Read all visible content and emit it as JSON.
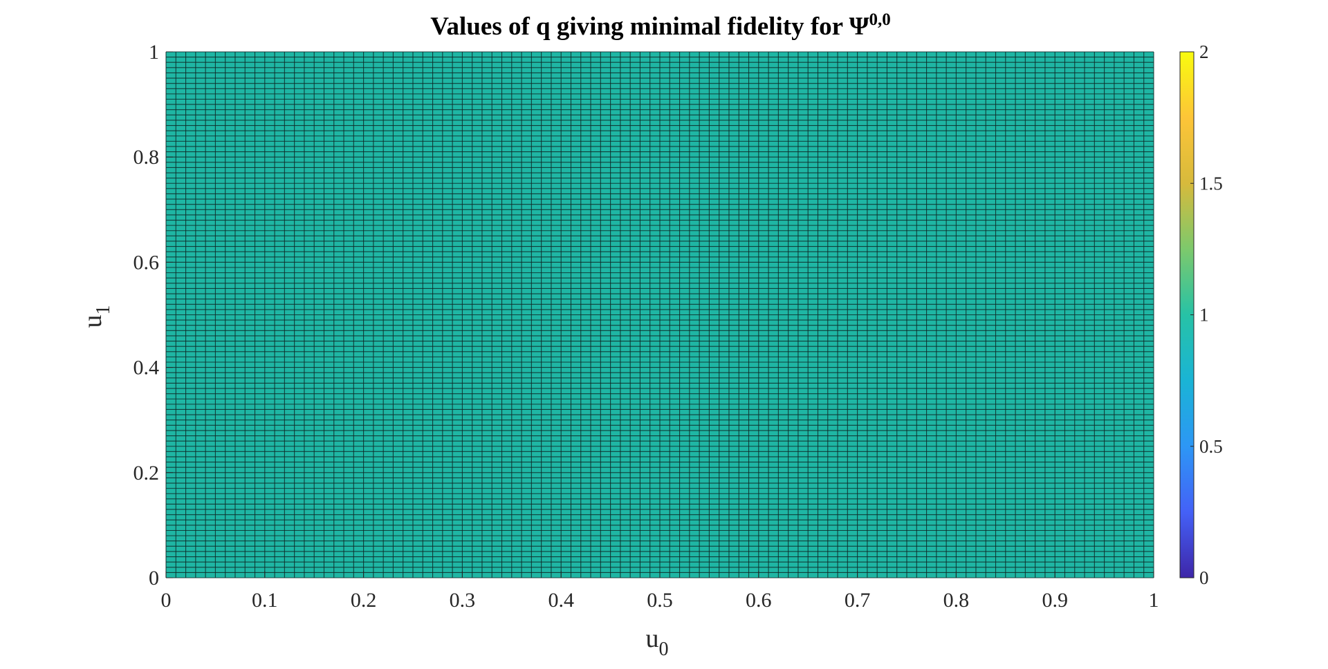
{
  "chart_data": {
    "type": "heatmap",
    "title": "Values of q giving minimal fidelity for Ψ",
    "title_superscript": "0,0",
    "xlabel": "u",
    "xlabel_subscript": "0",
    "ylabel": "u",
    "ylabel_subscript": "1",
    "xlim": [
      0,
      1
    ],
    "ylim": [
      0,
      1
    ],
    "x_ticks": [
      "0",
      "0.1",
      "0.2",
      "0.3",
      "0.4",
      "0.5",
      "0.6",
      "0.7",
      "0.8",
      "0.9",
      "1"
    ],
    "x_tick_values": [
      0,
      0.1,
      0.2,
      0.3,
      0.4,
      0.5,
      0.6,
      0.7,
      0.8,
      0.9,
      1
    ],
    "y_ticks": [
      "0",
      "0.2",
      "0.4",
      "0.6",
      "0.8",
      "1"
    ],
    "y_tick_values": [
      0,
      0.2,
      0.4,
      0.6,
      0.8,
      1
    ],
    "grid_x_cells": 100,
    "grid_y_cells": 100,
    "uniform_value": 1,
    "cell_color": "#1fb6a4",
    "grid_line_color": "#0f2a28",
    "colorbar": {
      "limits": [
        0,
        2
      ],
      "ticks": [
        "0",
        "0.5",
        "1",
        "1.5",
        "2"
      ],
      "tick_values": [
        0,
        0.5,
        1,
        1.5,
        2
      ],
      "colormap": [
        "#3e26a8",
        "#4461f7",
        "#2d97f5",
        "#1ab4d5",
        "#27c2a6",
        "#7dc96c",
        "#d7ba3c",
        "#fdc538",
        "#f9fb0e"
      ]
    }
  }
}
